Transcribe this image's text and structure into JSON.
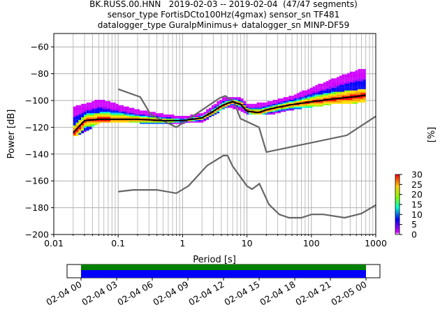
{
  "title_lines": [
    "BK.RUSS.00.HNN   2019-02-03 -- 2019-02-04  (47/47 segments)",
    "sensor_type FortisDCto100Hz(4gmax) sensor_sn TF481",
    "datalogger_type GuralpMinimus+ datalogger_sn MINP-DF59"
  ],
  "chart_data": [
    {
      "type": "heatmap",
      "xlabel": "Period [s]",
      "ylabel": "Power [dB]",
      "xscale": "log",
      "xlim": [
        0.01,
        1000
      ],
      "ylim": [
        -200,
        -50
      ],
      "xticks": [
        0.01,
        0.1,
        1,
        10,
        100,
        1000
      ],
      "xtick_labels": [
        "0.01",
        "0.1",
        "1",
        "10",
        "100",
        "1000"
      ],
      "yticks": [
        -200,
        -180,
        -160,
        -140,
        -120,
        -100,
        -80,
        -60
      ],
      "ytick_labels": [
        "−200",
        "−180",
        "−160",
        "−140",
        "−120",
        "−100",
        "−80",
        "−60"
      ],
      "grid": true,
      "colorbar": {
        "label": "[%]",
        "ticks": [
          0,
          5,
          10,
          15,
          20,
          25,
          30
        ],
        "colors": [
          "#ffffff",
          "#d000ff",
          "#0000ff",
          "#00ffd0",
          "#80ff00",
          "#ffd000",
          "#ff0000"
        ]
      },
      "series": [
        {
          "name": "",
          "style": "mode",
          "color": "#000000",
          "x": [
            0.02,
            0.03,
            0.05,
            0.1,
            0.2,
            0.5,
            1,
            2,
            3,
            4,
            5,
            6,
            8,
            10,
            15,
            20,
            30,
            50,
            100,
            200,
            500,
            700
          ],
          "y": [
            -124,
            -115,
            -114,
            -114,
            -114,
            -115,
            -115,
            -113,
            -108,
            -104,
            -102,
            -101,
            -103,
            -108,
            -109,
            -107,
            -105,
            -103,
            -101,
            -99,
            -97,
            -96
          ]
        },
        {
          "name": "",
          "style": "high_noise_model",
          "color": "#666666",
          "x": [
            0.1,
            0.22,
            0.32,
            0.8,
            3.8,
            4.6,
            6.3,
            7.9,
            15.4,
            20,
            354.8,
            1000
          ],
          "y": [
            -91.5,
            -97.4,
            -110.5,
            -120,
            -98,
            -96.5,
            -101,
            -113.5,
            -120,
            -138.5,
            -126,
            -111.8
          ]
        },
        {
          "name": "",
          "style": "low_noise_model",
          "color": "#666666",
          "x": [
            0.1,
            0.17,
            0.4,
            0.8,
            1.24,
            2.4,
            4.3,
            5.0,
            6.0,
            10.0,
            12.0,
            15.6,
            21.9,
            31.6,
            45,
            70,
            101,
            154,
            328,
            600,
            1000
          ],
          "y": [
            -168,
            -166.7,
            -166.7,
            -169.2,
            -163.7,
            -148.6,
            -141.1,
            -141.1,
            -149,
            -163.8,
            -166.2,
            -162.1,
            -177.5,
            -185,
            -187.5,
            -187.5,
            -185,
            -185,
            -187.5,
            -184.4,
            -178
          ]
        },
        {
          "name": "",
          "style": "psd_spread",
          "x": [
            0.02,
            0.03,
            0.05,
            0.1,
            0.2,
            0.5,
            1,
            2,
            4,
            5,
            8,
            10,
            20,
            50,
            100,
            200,
            500,
            700
          ],
          "y_low": [
            -126,
            -122,
            -116,
            -116,
            -116,
            -117,
            -116,
            -115,
            -106,
            -104,
            -107,
            -110,
            -110,
            -106,
            -104,
            -102,
            -101,
            -100
          ],
          "y_high": [
            -105,
            -103,
            -100,
            -104,
            -108,
            -111,
            -113,
            -110,
            -99,
            -98,
            -99,
            -104,
            -102,
            -97,
            -91,
            -85,
            -78,
            -77
          ]
        }
      ]
    },
    {
      "type": "timeline",
      "xlim": [
        "2019-02-04 00",
        "2019-02-05 00"
      ],
      "xtick_labels": [
        "02-04 00",
        "02-04 03",
        "02-04 06",
        "02-04 09",
        "02-04 12",
        "02-04 15",
        "02-04 18",
        "02-04 21",
        "02-05 00"
      ],
      "series": [
        {
          "name": "",
          "color": "#008000",
          "range": [
            "02-04 00",
            "02-05 00"
          ]
        },
        {
          "name": "",
          "color": "#0000ff",
          "range": [
            "02-04 00",
            "02-05 00"
          ]
        }
      ]
    }
  ]
}
